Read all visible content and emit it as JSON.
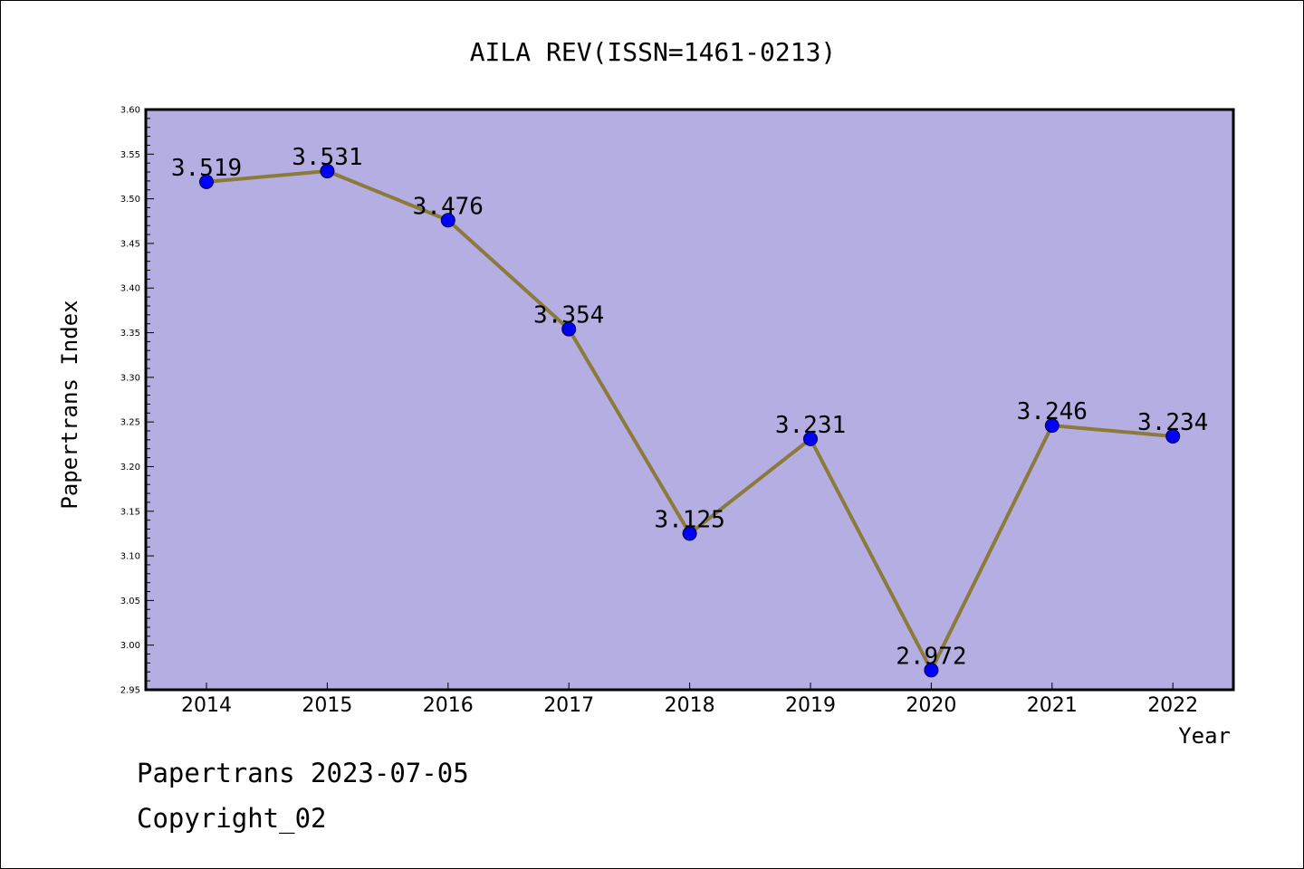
{
  "chart_data": {
    "type": "line",
    "title": "AILA REV(ISSN=1461-0213)",
    "xlabel": "Year",
    "ylabel": "Papertrans Index",
    "categories": [
      "2014",
      "2015",
      "2016",
      "2017",
      "2018",
      "2019",
      "2020",
      "2021",
      "2022"
    ],
    "values": [
      3.519,
      3.531,
      3.476,
      3.354,
      3.125,
      3.231,
      2.972,
      3.246,
      3.234
    ],
    "data_labels": [
      "3.519",
      "3.531",
      "3.476",
      "3.354",
      "3.125",
      "3.231",
      "2.972",
      "3.246",
      "3.234"
    ],
    "ylim": [
      2.95,
      3.6
    ],
    "yticks": [
      "2.95",
      "3.00",
      "3.05",
      "3.10",
      "3.15",
      "3.20",
      "3.25",
      "3.30",
      "3.35",
      "3.40",
      "3.45",
      "3.50",
      "3.55",
      "3.60"
    ],
    "grid": false,
    "colors": {
      "plot_background": "#b5aee2",
      "line": "#8b7a3a",
      "marker": "#0000ff"
    }
  },
  "footer": {
    "line1": "Papertrans 2023-07-05",
    "line2": "Copyright_02"
  }
}
